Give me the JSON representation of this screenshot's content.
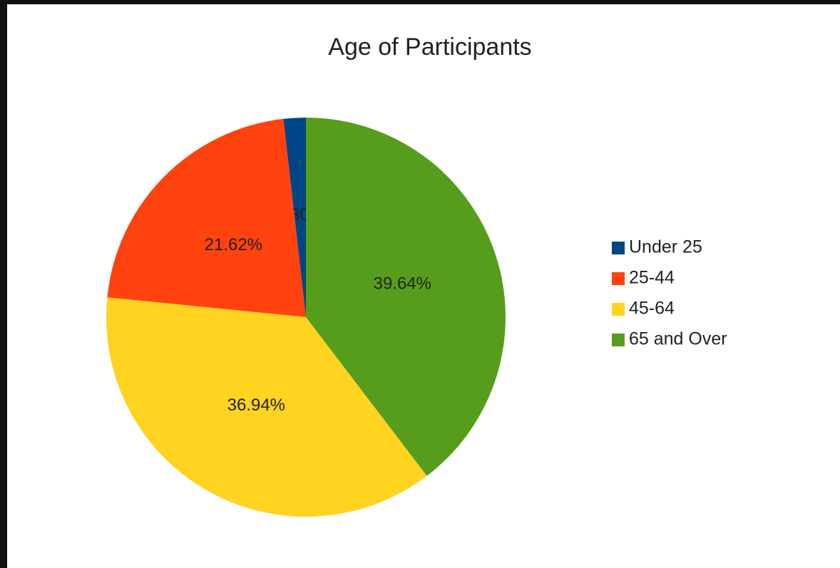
{
  "chart_data": {
    "type": "pie",
    "title": "Age of Participants",
    "categories": [
      "Under 25",
      "25-44",
      "45-64",
      "65 and Over"
    ],
    "values": [
      1.8,
      21.62,
      36.94,
      39.64
    ],
    "value_labels": [
      "1.80%",
      "21.62%",
      "36.94%",
      "39.64%"
    ],
    "colors": [
      "#004586",
      "#ff420e",
      "#ffd320",
      "#579d1c"
    ],
    "legend": "right"
  }
}
